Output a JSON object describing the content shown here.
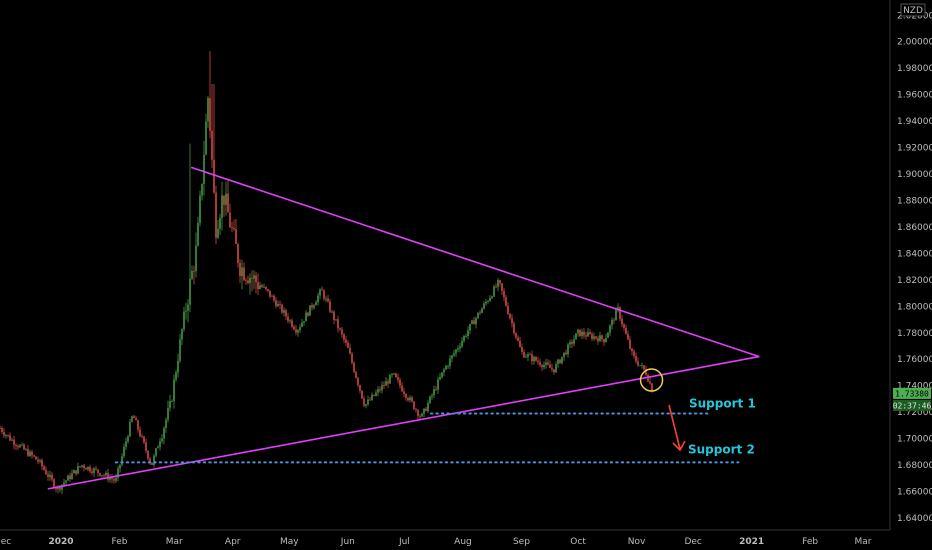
{
  "chart_data": {
    "type": "candlestick",
    "currency": "NZD",
    "y_axis": {
      "ticks": [
        "2.02000",
        "2.00000",
        "1.98000",
        "1.96000",
        "1.94000",
        "1.92000",
        "1.90000",
        "1.88000",
        "1.86000",
        "1.84000",
        "1.82000",
        "1.80000",
        "1.78000",
        "1.76000",
        "1.74000",
        "1.72000",
        "1.70000",
        "1.68000",
        "1.66000",
        "1.64000"
      ],
      "range": [
        1.625,
        2.025
      ]
    },
    "x_axis": {
      "ticks": [
        "Dec",
        "2020",
        "Feb",
        "Mar",
        "Apr",
        "May",
        "Jun",
        "Jul",
        "Aug",
        "Sep",
        "Oct",
        "Nov",
        "Dec",
        "2021",
        "Feb",
        "Mar"
      ]
    },
    "price": {
      "last_price": "1.73380",
      "countdown": "02:37:46",
      "key_points": [
        {
          "date": "2019-11-25",
          "value": 1.715
        },
        {
          "date": "2019-12-05",
          "value": 1.7
        },
        {
          "date": "2019-12-20",
          "value": 1.683
        },
        {
          "date": "2019-12-30",
          "value": 1.662
        },
        {
          "date": "2020-01-12",
          "value": 1.68
        },
        {
          "date": "2020-01-22",
          "value": 1.674
        },
        {
          "date": "2020-01-30",
          "value": 1.668
        },
        {
          "date": "2020-02-08",
          "value": 1.718
        },
        {
          "date": "2020-02-18",
          "value": 1.68
        },
        {
          "date": "2020-02-28",
          "value": 1.725
        },
        {
          "date": "2020-03-06",
          "value": 1.79
        },
        {
          "date": "2020-03-13",
          "value": 1.845
        },
        {
          "date": "2020-03-19",
          "value": 1.96
        },
        {
          "date": "2020-03-23",
          "value": 1.86
        },
        {
          "date": "2020-03-27",
          "value": 1.885
        },
        {
          "date": "2020-04-05",
          "value": 1.83
        },
        {
          "date": "2020-04-20",
          "value": 1.81
        },
        {
          "date": "2020-05-05",
          "value": 1.782
        },
        {
          "date": "2020-05-18",
          "value": 1.812
        },
        {
          "date": "2020-06-01",
          "value": 1.768
        },
        {
          "date": "2020-06-10",
          "value": 1.725
        },
        {
          "date": "2020-06-25",
          "value": 1.748
        },
        {
          "date": "2020-07-10",
          "value": 1.716
        },
        {
          "date": "2020-07-22",
          "value": 1.752
        },
        {
          "date": "2020-08-05",
          "value": 1.785
        },
        {
          "date": "2020-08-20",
          "value": 1.818
        },
        {
          "date": "2020-09-01",
          "value": 1.765
        },
        {
          "date": "2020-09-18",
          "value": 1.752
        },
        {
          "date": "2020-10-01",
          "value": 1.78
        },
        {
          "date": "2020-10-15",
          "value": 1.775
        },
        {
          "date": "2020-10-22",
          "value": 1.798
        },
        {
          "date": "2020-10-30",
          "value": 1.762
        },
        {
          "date": "2020-11-06",
          "value": 1.75
        },
        {
          "date": "2020-11-10",
          "value": 1.734
        }
      ]
    },
    "trendlines": [
      {
        "name": "upper",
        "from": {
          "date": "2020-03-10",
          "value": 1.905
        },
        "to": {
          "date": "2021-01-05",
          "value": 1.762
        }
      },
      {
        "name": "lower",
        "from": {
          "date": "2019-12-25",
          "value": 1.662
        },
        "to": {
          "date": "2021-01-05",
          "value": 1.762
        }
      }
    ],
    "support_levels": [
      {
        "label": "Support 1",
        "value": 1.719,
        "from": "2020-07-15",
        "to": "2020-12-10"
      },
      {
        "label": "Support 2",
        "value": 1.682,
        "from": "2020-01-30",
        "to": "2020-12-25"
      }
    ],
    "colors": {
      "background": "#000000",
      "trendline": "#e040fb",
      "support": "#4a90d9",
      "annotation_text": "#26c6da",
      "arrow": "#f44336",
      "circle": "#f0d050",
      "candle_up": "#4caf50",
      "candle_down": "#ef5350",
      "price_badge": "#4caf50"
    }
  }
}
